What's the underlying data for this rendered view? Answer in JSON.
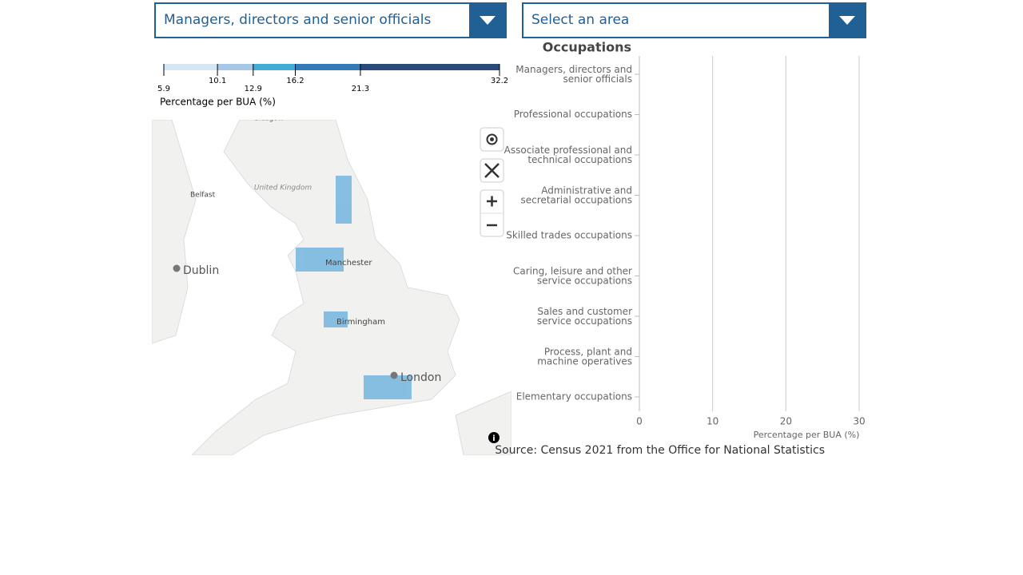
{
  "dropdowns": [
    "Managers, directors and senior officials",
    "Select an area"
  ],
  "legend": {
    "title": "Percentage per BUA (%)",
    "breaks": [
      5.9,
      10.1,
      12.9,
      16.2,
      21.3,
      32.2
    ],
    "colors": [
      "#d5e6f5",
      "#a6c8e6",
      "#43acd5",
      "#3479b8",
      "#2a4a7b"
    ]
  },
  "map_labels": [
    "Glasgow",
    "United Kingdom",
    "Belfast",
    "Dublin",
    "Manchester",
    "Birmingham",
    "London"
  ],
  "chart_data": {
    "type": "bar",
    "orientation": "horizontal",
    "title": "Occupations",
    "categories": [
      "Managers, directors and senior officials",
      "Professional occupations",
      "Associate professional and technical occupations",
      "Administrative and secretarial occupations",
      "Skilled trades occupations",
      "Caring, leisure and other service occupations",
      "Sales and customer service occupations",
      "Process, plant and machine operatives",
      "Elementary occupations"
    ],
    "x_label": "Percentage per BUA (%)",
    "xlim": [
      0,
      30
    ],
    "xticks": [
      0,
      10,
      20,
      30
    ],
    "grid": true
  },
  "source": "Source: Census 2021 from the Office for National Statistics"
}
